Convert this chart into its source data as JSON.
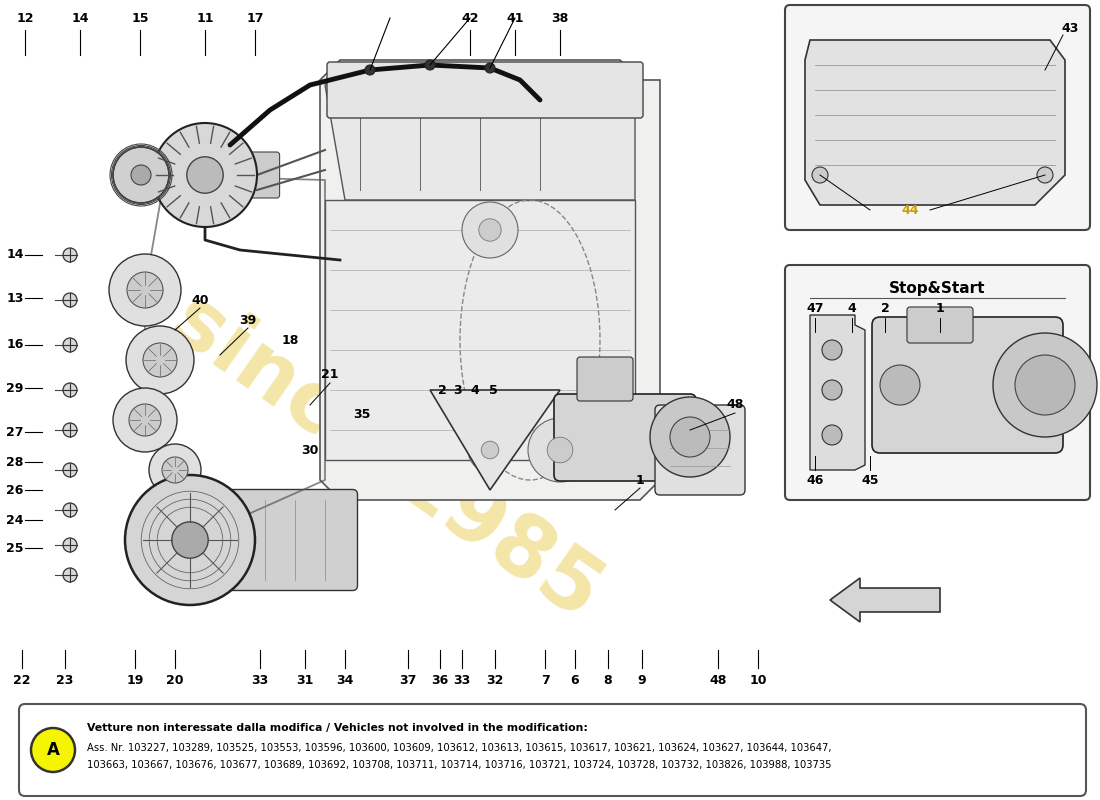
{
  "bg_color": "#ffffff",
  "watermark_color": "#e8c840",
  "watermark_alpha": 0.45,
  "bottom_note_line1": "Vetture non interessate dalla modifica / Vehicles not involved in the modification:",
  "bottom_note_line2": "Ass. Nr. 103227, 103289, 103525, 103553, 103596, 103600, 103609, 103612, 103613, 103615, 103617, 103621, 103624, 103627, 103644, 103647,",
  "bottom_note_line3": "103663, 103667, 103676, 103677, 103689, 103692, 103708, 103711, 103714, 103716, 103721, 103724, 103728, 103732, 103826, 103988, 103735",
  "stop_start_label": "Stop&Start",
  "circle_A_color": "#f5f500",
  "fig_width": 11.0,
  "fig_height": 8.0
}
